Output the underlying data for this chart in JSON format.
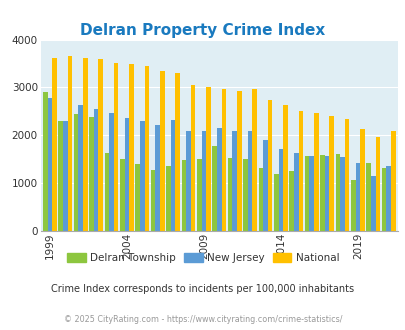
{
  "title": "Delran Property Crime Index",
  "subtitle": "Crime Index corresponds to incidents per 100,000 inhabitants",
  "footer": "© 2025 CityRating.com - https://www.cityrating.com/crime-statistics/",
  "years": [
    1999,
    2000,
    2001,
    2002,
    2003,
    2004,
    2005,
    2006,
    2007,
    2008,
    2009,
    2010,
    2011,
    2012,
    2013,
    2014,
    2015,
    2016,
    2017,
    2018,
    2019,
    2020,
    2021
  ],
  "delran": [
    2900,
    2300,
    2450,
    2380,
    1620,
    1500,
    1400,
    1270,
    1360,
    1480,
    1500,
    1780,
    1530,
    1510,
    1310,
    1190,
    1250,
    1570,
    1580,
    1600,
    1070,
    1430,
    1310
  ],
  "nj": [
    2770,
    2300,
    2640,
    2550,
    2460,
    2360,
    2300,
    2220,
    2310,
    2090,
    2090,
    2150,
    2090,
    2080,
    1900,
    1720,
    1630,
    1570,
    1570,
    1550,
    1430,
    1140,
    1350
  ],
  "national": [
    3610,
    3650,
    3610,
    3600,
    3520,
    3500,
    3450,
    3340,
    3310,
    3050,
    3000,
    2960,
    2930,
    2960,
    2740,
    2640,
    2510,
    2460,
    2400,
    2350,
    2140,
    1960,
    2100
  ],
  "delran_color": "#8dc63f",
  "nj_color": "#5b9bd5",
  "national_color": "#ffc000",
  "bg_color": "#e0eef4",
  "title_color": "#1a7abf",
  "subtitle_color": "#333333",
  "footer_color": "#999999",
  "ylim": [
    0,
    4000
  ],
  "yticks": [
    0,
    1000,
    2000,
    3000,
    4000
  ],
  "xtick_years": [
    1999,
    2004,
    2009,
    2014,
    2019
  ]
}
